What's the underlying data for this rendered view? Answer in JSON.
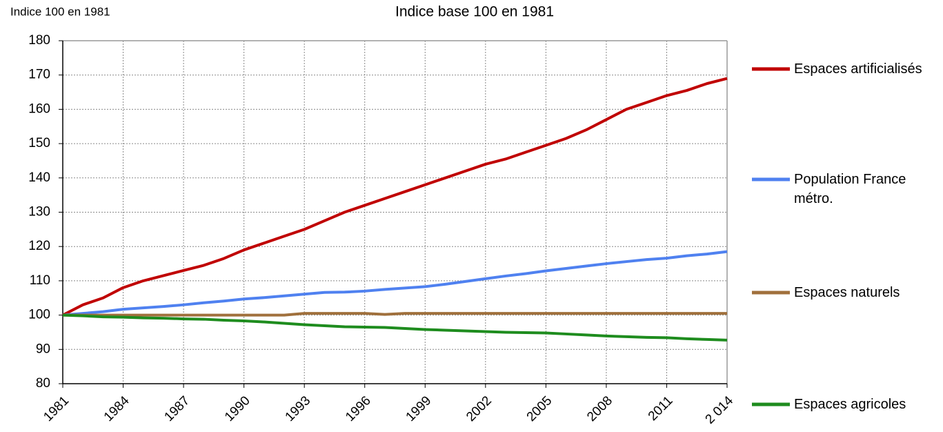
{
  "chart_data": {
    "type": "line",
    "title": "Indice base 100 en 1981",
    "y_label": "Indice 100 en 1981",
    "x": [
      1981,
      1982,
      1983,
      1984,
      1985,
      1986,
      1987,
      1988,
      1989,
      1990,
      1991,
      1992,
      1993,
      1994,
      1995,
      1996,
      1997,
      1998,
      1999,
      2000,
      2001,
      2002,
      2003,
      2004,
      2005,
      2006,
      2007,
      2008,
      2009,
      2010,
      2011,
      2012,
      2013,
      2014
    ],
    "series": [
      {
        "name": "Espaces artificialisés",
        "color": "#c00000",
        "values": [
          100,
          103,
          105,
          108,
          110,
          111.5,
          113,
          114.5,
          116.5,
          119,
          121,
          123,
          125,
          127.5,
          130,
          132,
          134,
          136,
          138,
          140,
          142,
          144,
          145.5,
          147.5,
          149.5,
          151.5,
          154,
          157,
          160,
          162,
          164,
          165.5,
          167.5,
          169
        ]
      },
      {
        "name": "Population France métro.",
        "color": "#4f81f0",
        "values": [
          100,
          100.5,
          101,
          101.7,
          102.1,
          102.5,
          103,
          103.6,
          104.1,
          104.7,
          105.1,
          105.6,
          106.1,
          106.6,
          106.7,
          107,
          107.5,
          107.9,
          108.3,
          109,
          109.8,
          110.6,
          111.4,
          112.1,
          112.9,
          113.6,
          114.3,
          115,
          115.6,
          116.2,
          116.6,
          117.3,
          117.8,
          118.5
        ]
      },
      {
        "name": "Espaces naturels",
        "color": "#a0703c",
        "values": [
          100,
          100,
          100,
          100,
          100,
          100,
          100,
          100,
          100,
          100,
          100,
          100,
          100.5,
          100.5,
          100.5,
          100.5,
          100.2,
          100.5,
          100.5,
          100.5,
          100.5,
          100.5,
          100.5,
          100.5,
          100.5,
          100.5,
          100.5,
          100.5,
          100.5,
          100.5,
          100.5,
          100.5,
          100.5,
          100.5
        ]
      },
      {
        "name": "Espaces agricoles",
        "color": "#1e8c1e",
        "values": [
          100,
          99.8,
          99.5,
          99.4,
          99.2,
          99.1,
          98.9,
          98.8,
          98.5,
          98.3,
          98,
          97.6,
          97.2,
          96.9,
          96.6,
          96.5,
          96.4,
          96.1,
          95.8,
          95.6,
          95.4,
          95.2,
          95,
          94.9,
          94.8,
          94.5,
          94.2,
          93.9,
          93.7,
          93.5,
          93.4,
          93.1,
          92.9,
          92.7
        ]
      }
    ],
    "xlim": [
      1981,
      2014
    ],
    "xticks": [
      1981,
      1984,
      1987,
      1990,
      1993,
      1996,
      1999,
      2002,
      2005,
      2008,
      2011,
      {
        "value": 2014,
        "label": "2 014"
      }
    ],
    "ylim": [
      80,
      180
    ],
    "yticks": [
      80,
      90,
      100,
      110,
      120,
      130,
      140,
      150,
      160,
      170,
      180
    ],
    "grid": true,
    "legend": "right"
  }
}
